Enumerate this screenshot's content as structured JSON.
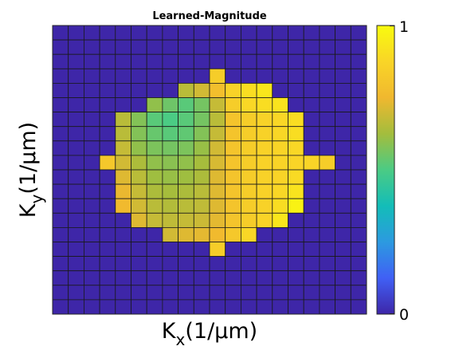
{
  "chart_data": {
    "type": "heatmap",
    "title": "Learned-Magnitude",
    "xlabel": {
      "main": "K",
      "sub": "x",
      "rest": "(1/μm)"
    },
    "ylabel": {
      "main": "K",
      "sub": "y",
      "rest": "(1/μm)"
    },
    "grid": "on",
    "rows": 20,
    "cols": 20,
    "colorbar": {
      "min": 0,
      "max": 1,
      "min_label": "0",
      "max_label": "1",
      "colormap": "parula",
      "stops": [
        "#3e26a8",
        "#4060f5",
        "#2c9ae0",
        "#13bdb8",
        "#4bcb84",
        "#a3bd3d",
        "#f0b82f",
        "#f9d527",
        "#f9fb0e"
      ],
      "placement": "right"
    },
    "values": [
      [
        0,
        0,
        0,
        0,
        0,
        0,
        0,
        0,
        0,
        0,
        0,
        0,
        0,
        0,
        0,
        0,
        0,
        0,
        0,
        0
      ],
      [
        0,
        0,
        0,
        0,
        0,
        0,
        0,
        0,
        0,
        0,
        0,
        0,
        0,
        0,
        0,
        0,
        0,
        0,
        0,
        0
      ],
      [
        0,
        0,
        0,
        0,
        0,
        0,
        0,
        0,
        0,
        0,
        0,
        0,
        0,
        0,
        0,
        0,
        0,
        0,
        0,
        0
      ],
      [
        0,
        0,
        0,
        0,
        0,
        0,
        0,
        0,
        0,
        0,
        0.84,
        0,
        0,
        0,
        0,
        0,
        0,
        0,
        0,
        0
      ],
      [
        0,
        0,
        0,
        0,
        0,
        0,
        0,
        0,
        0.66,
        0.7,
        0.78,
        0.86,
        0.9,
        0.93,
        0,
        0,
        0,
        0,
        0,
        0
      ],
      [
        0,
        0,
        0,
        0,
        0,
        0,
        0.6,
        0.55,
        0.52,
        0.56,
        0.68,
        0.84,
        0.88,
        0.9,
        0.92,
        0,
        0,
        0,
        0,
        0
      ],
      [
        0,
        0,
        0,
        0,
        0.66,
        0.58,
        0.52,
        0.5,
        0.52,
        0.56,
        0.66,
        0.8,
        0.84,
        0.86,
        0.88,
        0.9,
        0,
        0,
        0,
        0
      ],
      [
        0,
        0,
        0,
        0,
        0.66,
        0.58,
        0.54,
        0.52,
        0.53,
        0.58,
        0.68,
        0.8,
        0.84,
        0.86,
        0.88,
        0.9,
        0,
        0,
        0,
        0
      ],
      [
        0,
        0,
        0,
        0,
        0.68,
        0.6,
        0.57,
        0.56,
        0.57,
        0.61,
        0.7,
        0.8,
        0.84,
        0.86,
        0.87,
        0.88,
        0,
        0,
        0,
        0
      ],
      [
        0,
        0,
        0,
        0.82,
        0.7,
        0.64,
        0.6,
        0.59,
        0.6,
        0.63,
        0.71,
        0.8,
        0.84,
        0.86,
        0.87,
        0.87,
        0.87,
        0.84,
        0,
        0
      ],
      [
        0,
        0,
        0,
        0,
        0.72,
        0.66,
        0.62,
        0.61,
        0.62,
        0.64,
        0.72,
        0.8,
        0.84,
        0.86,
        0.87,
        0.89,
        0,
        0,
        0,
        0
      ],
      [
        0,
        0,
        0,
        0,
        0.74,
        0.68,
        0.64,
        0.63,
        0.64,
        0.66,
        0.72,
        0.8,
        0.84,
        0.86,
        0.88,
        0.92,
        0,
        0,
        0,
        0
      ],
      [
        0,
        0,
        0,
        0,
        0.76,
        0.7,
        0.66,
        0.65,
        0.66,
        0.67,
        0.72,
        0.8,
        0.84,
        0.86,
        0.9,
        0.97,
        0,
        0,
        0,
        0
      ],
      [
        0,
        0,
        0,
        0,
        0,
        0.72,
        0.68,
        0.67,
        0.68,
        0.69,
        0.73,
        0.8,
        0.84,
        0.87,
        0.93,
        0,
        0,
        0,
        0,
        0
      ],
      [
        0,
        0,
        0,
        0,
        0,
        0,
        0,
        0.7,
        0.72,
        0.73,
        0.76,
        0.82,
        0.88,
        0,
        0,
        0,
        0,
        0,
        0,
        0
      ],
      [
        0,
        0,
        0,
        0,
        0,
        0,
        0,
        0,
        0,
        0,
        0.84,
        0,
        0,
        0,
        0,
        0,
        0,
        0,
        0,
        0
      ],
      [
        0,
        0,
        0,
        0,
        0,
        0,
        0,
        0,
        0,
        0,
        0,
        0,
        0,
        0,
        0,
        0,
        0,
        0,
        0,
        0
      ],
      [
        0,
        0,
        0,
        0,
        0,
        0,
        0,
        0,
        0,
        0,
        0,
        0,
        0,
        0,
        0,
        0,
        0,
        0,
        0,
        0
      ],
      [
        0,
        0,
        0,
        0,
        0,
        0,
        0,
        0,
        0,
        0,
        0,
        0,
        0,
        0,
        0,
        0,
        0,
        0,
        0,
        0
      ],
      [
        0,
        0,
        0,
        0,
        0,
        0,
        0,
        0,
        0,
        0,
        0,
        0,
        0,
        0,
        0,
        0,
        0,
        0,
        0,
        0
      ]
    ]
  }
}
